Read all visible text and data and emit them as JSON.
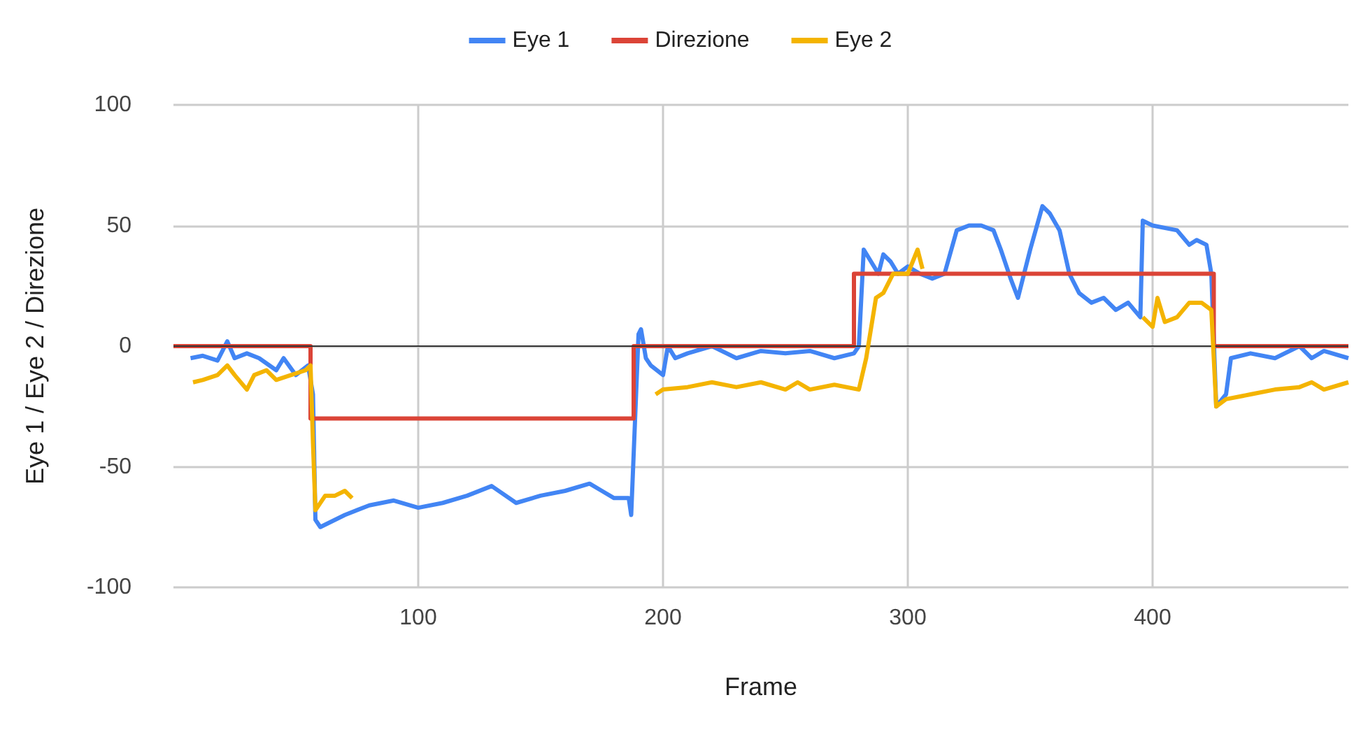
{
  "chart_data": {
    "type": "line",
    "xlabel": "Frame",
    "ylabel": "Eye 1 / Eye 2 / Direzione",
    "xlim": [
      0,
      480
    ],
    "xticks": [
      100,
      200,
      300,
      400
    ],
    "ylim": [
      -100,
      100
    ],
    "yticks": [
      -100,
      -50,
      0,
      50,
      100
    ],
    "grid": true,
    "legend": "top",
    "marker": "none",
    "line_style": "solid",
    "ref_lines": [
      {
        "axis": "y",
        "value": 0,
        "color": "#333333"
      }
    ],
    "series": [
      {
        "name": "Eye 1",
        "color": "#4285f4",
        "x": [
          7,
          12,
          18,
          22,
          25,
          30,
          35,
          42,
          45,
          50,
          55,
          57,
          58,
          60,
          70,
          80,
          90,
          100,
          110,
          120,
          130,
          140,
          150,
          160,
          170,
          175,
          180,
          186,
          187,
          189,
          190,
          191,
          193,
          195,
          200,
          202,
          205,
          210,
          220,
          230,
          240,
          250,
          260,
          270,
          278,
          280,
          282,
          285,
          288,
          290,
          293,
          296,
          300,
          305,
          310,
          315,
          320,
          325,
          330,
          335,
          338,
          342,
          345,
          350,
          355,
          358,
          362,
          366,
          370,
          375,
          380,
          385,
          390,
          395,
          396,
          400,
          410,
          415,
          418,
          422,
          424,
          426,
          430,
          432,
          440,
          450,
          460,
          465,
          470,
          480
        ],
        "values": [
          -5,
          -4,
          -6,
          2,
          -5,
          -3,
          -5,
          -10,
          -5,
          -12,
          -8,
          -20,
          -72,
          -75,
          -70,
          -66,
          -64,
          -67,
          -65,
          -62,
          -58,
          -65,
          -62,
          -60,
          -57,
          -60,
          -63,
          -63,
          -70,
          -20,
          5,
          7,
          -5,
          -8,
          -12,
          0,
          -5,
          -3,
          0,
          -5,
          -2,
          -3,
          -2,
          -5,
          -3,
          0,
          40,
          35,
          30,
          38,
          35,
          30,
          33,
          30,
          28,
          30,
          48,
          50,
          50,
          48,
          40,
          28,
          20,
          40,
          58,
          55,
          48,
          30,
          22,
          18,
          20,
          15,
          18,
          12,
          52,
          50,
          48,
          42,
          44,
          42,
          30,
          -25,
          -20,
          -5,
          -3,
          -5,
          0,
          -5,
          -2,
          -5
        ]
      },
      {
        "name": "Direzione",
        "color": "#db4437",
        "x": [
          0,
          56,
          56,
          188,
          188,
          278,
          278,
          425,
          425,
          480
        ],
        "values": [
          0,
          0,
          -30,
          -30,
          0,
          0,
          30,
          30,
          0,
          0
        ]
      },
      {
        "name": "Eye 2",
        "color": "#f4b400",
        "x": [
          8,
          12,
          18,
          22,
          25,
          30,
          33,
          38,
          42,
          48,
          54,
          56,
          57,
          58,
          62,
          66,
          70,
          73,
          135,
          197,
          200,
          210,
          220,
          230,
          240,
          250,
          255,
          260,
          270,
          280,
          283,
          287,
          290,
          294,
          300,
          302,
          304,
          306,
          350,
          396,
          400,
          402,
          405,
          410,
          415,
          420,
          424,
          426,
          430,
          440,
          450,
          460,
          465,
          470,
          480
        ],
        "values": [
          -15,
          -14,
          -12,
          -8,
          -12,
          -18,
          -12,
          -10,
          -14,
          -12,
          -10,
          -8,
          -40,
          -68,
          -62,
          -62,
          -60,
          -63,
          null,
          -20,
          -18,
          -17,
          -15,
          -17,
          -15,
          -18,
          -15,
          -18,
          -16,
          -18,
          -5,
          20,
          22,
          30,
          30,
          35,
          40,
          32,
          null,
          12,
          8,
          20,
          10,
          12,
          18,
          18,
          15,
          -25,
          -22,
          -20,
          -18,
          -17,
          -15,
          -18,
          -15
        ]
      }
    ]
  }
}
